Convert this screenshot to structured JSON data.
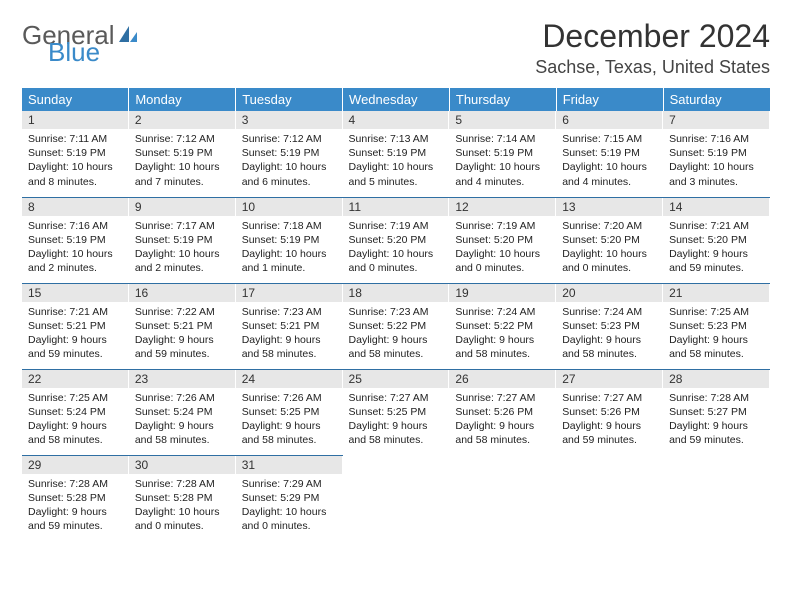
{
  "logo": {
    "line1": "General",
    "line2": "Blue"
  },
  "header": {
    "month_title": "December 2024",
    "location": "Sachse, Texas, United States"
  },
  "colors": {
    "header_bg": "#3a8ac9",
    "row_divider": "#2f6fa3",
    "daynum_bg": "#e7e7e7"
  },
  "weekdays": [
    "Sunday",
    "Monday",
    "Tuesday",
    "Wednesday",
    "Thursday",
    "Friday",
    "Saturday"
  ],
  "weeks": [
    [
      {
        "n": "1",
        "sunrise": "Sunrise: 7:11 AM",
        "sunset": "Sunset: 5:19 PM",
        "day1": "Daylight: 10 hours",
        "day2": "and 8 minutes."
      },
      {
        "n": "2",
        "sunrise": "Sunrise: 7:12 AM",
        "sunset": "Sunset: 5:19 PM",
        "day1": "Daylight: 10 hours",
        "day2": "and 7 minutes."
      },
      {
        "n": "3",
        "sunrise": "Sunrise: 7:12 AM",
        "sunset": "Sunset: 5:19 PM",
        "day1": "Daylight: 10 hours",
        "day2": "and 6 minutes."
      },
      {
        "n": "4",
        "sunrise": "Sunrise: 7:13 AM",
        "sunset": "Sunset: 5:19 PM",
        "day1": "Daylight: 10 hours",
        "day2": "and 5 minutes."
      },
      {
        "n": "5",
        "sunrise": "Sunrise: 7:14 AM",
        "sunset": "Sunset: 5:19 PM",
        "day1": "Daylight: 10 hours",
        "day2": "and 4 minutes."
      },
      {
        "n": "6",
        "sunrise": "Sunrise: 7:15 AM",
        "sunset": "Sunset: 5:19 PM",
        "day1": "Daylight: 10 hours",
        "day2": "and 4 minutes."
      },
      {
        "n": "7",
        "sunrise": "Sunrise: 7:16 AM",
        "sunset": "Sunset: 5:19 PM",
        "day1": "Daylight: 10 hours",
        "day2": "and 3 minutes."
      }
    ],
    [
      {
        "n": "8",
        "sunrise": "Sunrise: 7:16 AM",
        "sunset": "Sunset: 5:19 PM",
        "day1": "Daylight: 10 hours",
        "day2": "and 2 minutes."
      },
      {
        "n": "9",
        "sunrise": "Sunrise: 7:17 AM",
        "sunset": "Sunset: 5:19 PM",
        "day1": "Daylight: 10 hours",
        "day2": "and 2 minutes."
      },
      {
        "n": "10",
        "sunrise": "Sunrise: 7:18 AM",
        "sunset": "Sunset: 5:19 PM",
        "day1": "Daylight: 10 hours",
        "day2": "and 1 minute."
      },
      {
        "n": "11",
        "sunrise": "Sunrise: 7:19 AM",
        "sunset": "Sunset: 5:20 PM",
        "day1": "Daylight: 10 hours",
        "day2": "and 0 minutes."
      },
      {
        "n": "12",
        "sunrise": "Sunrise: 7:19 AM",
        "sunset": "Sunset: 5:20 PM",
        "day1": "Daylight: 10 hours",
        "day2": "and 0 minutes."
      },
      {
        "n": "13",
        "sunrise": "Sunrise: 7:20 AM",
        "sunset": "Sunset: 5:20 PM",
        "day1": "Daylight: 10 hours",
        "day2": "and 0 minutes."
      },
      {
        "n": "14",
        "sunrise": "Sunrise: 7:21 AM",
        "sunset": "Sunset: 5:20 PM",
        "day1": "Daylight: 9 hours",
        "day2": "and 59 minutes."
      }
    ],
    [
      {
        "n": "15",
        "sunrise": "Sunrise: 7:21 AM",
        "sunset": "Sunset: 5:21 PM",
        "day1": "Daylight: 9 hours",
        "day2": "and 59 minutes."
      },
      {
        "n": "16",
        "sunrise": "Sunrise: 7:22 AM",
        "sunset": "Sunset: 5:21 PM",
        "day1": "Daylight: 9 hours",
        "day2": "and 59 minutes."
      },
      {
        "n": "17",
        "sunrise": "Sunrise: 7:23 AM",
        "sunset": "Sunset: 5:21 PM",
        "day1": "Daylight: 9 hours",
        "day2": "and 58 minutes."
      },
      {
        "n": "18",
        "sunrise": "Sunrise: 7:23 AM",
        "sunset": "Sunset: 5:22 PM",
        "day1": "Daylight: 9 hours",
        "day2": "and 58 minutes."
      },
      {
        "n": "19",
        "sunrise": "Sunrise: 7:24 AM",
        "sunset": "Sunset: 5:22 PM",
        "day1": "Daylight: 9 hours",
        "day2": "and 58 minutes."
      },
      {
        "n": "20",
        "sunrise": "Sunrise: 7:24 AM",
        "sunset": "Sunset: 5:23 PM",
        "day1": "Daylight: 9 hours",
        "day2": "and 58 minutes."
      },
      {
        "n": "21",
        "sunrise": "Sunrise: 7:25 AM",
        "sunset": "Sunset: 5:23 PM",
        "day1": "Daylight: 9 hours",
        "day2": "and 58 minutes."
      }
    ],
    [
      {
        "n": "22",
        "sunrise": "Sunrise: 7:25 AM",
        "sunset": "Sunset: 5:24 PM",
        "day1": "Daylight: 9 hours",
        "day2": "and 58 minutes."
      },
      {
        "n": "23",
        "sunrise": "Sunrise: 7:26 AM",
        "sunset": "Sunset: 5:24 PM",
        "day1": "Daylight: 9 hours",
        "day2": "and 58 minutes."
      },
      {
        "n": "24",
        "sunrise": "Sunrise: 7:26 AM",
        "sunset": "Sunset: 5:25 PM",
        "day1": "Daylight: 9 hours",
        "day2": "and 58 minutes."
      },
      {
        "n": "25",
        "sunrise": "Sunrise: 7:27 AM",
        "sunset": "Sunset: 5:25 PM",
        "day1": "Daylight: 9 hours",
        "day2": "and 58 minutes."
      },
      {
        "n": "26",
        "sunrise": "Sunrise: 7:27 AM",
        "sunset": "Sunset: 5:26 PM",
        "day1": "Daylight: 9 hours",
        "day2": "and 58 minutes."
      },
      {
        "n": "27",
        "sunrise": "Sunrise: 7:27 AM",
        "sunset": "Sunset: 5:26 PM",
        "day1": "Daylight: 9 hours",
        "day2": "and 59 minutes."
      },
      {
        "n": "28",
        "sunrise": "Sunrise: 7:28 AM",
        "sunset": "Sunset: 5:27 PM",
        "day1": "Daylight: 9 hours",
        "day2": "and 59 minutes."
      }
    ],
    [
      {
        "n": "29",
        "sunrise": "Sunrise: 7:28 AM",
        "sunset": "Sunset: 5:28 PM",
        "day1": "Daylight: 9 hours",
        "day2": "and 59 minutes."
      },
      {
        "n": "30",
        "sunrise": "Sunrise: 7:28 AM",
        "sunset": "Sunset: 5:28 PM",
        "day1": "Daylight: 10 hours",
        "day2": "and 0 minutes."
      },
      {
        "n": "31",
        "sunrise": "Sunrise: 7:29 AM",
        "sunset": "Sunset: 5:29 PM",
        "day1": "Daylight: 10 hours",
        "day2": "and 0 minutes."
      },
      null,
      null,
      null,
      null
    ]
  ]
}
